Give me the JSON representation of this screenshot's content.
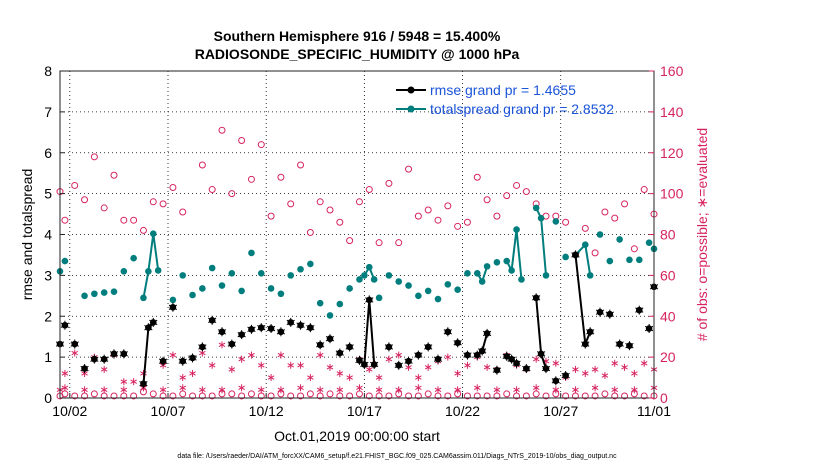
{
  "chart_data": {
    "type": "line",
    "title_line1": "Southern Hemisphere 916 / 5948 = 15.400%",
    "title_line2": "RADIOSONDE_SPECIFIC_HUMIDITY @ 1000 hPa",
    "xlabel": "Oct.01,2019 00:00:00 start",
    "ylabel_left": "rmse and totalspread",
    "ylabel_right": "# of obs: o=possible; ∗=evaluated",
    "footer": "data file: /Users/raeder/DAI/ATM_forcXX/CAM6_setup/f.e21.FHIST_BGC.f09_025.CAM6assim.011/Diags_NTrS_2019-10/obs_diag_output.nc",
    "xlim": [
      0.75,
      31.0
    ],
    "ylim_left": [
      0,
      8
    ],
    "ylim_right": [
      0,
      160
    ],
    "x_ticks": [
      {
        "value": 1.25,
        "label": "10/02"
      },
      {
        "value": 6.25,
        "label": "10/07"
      },
      {
        "value": 11.25,
        "label": "10/12"
      },
      {
        "value": 16.25,
        "label": "10/17"
      },
      {
        "value": 21.25,
        "label": "10/22"
      },
      {
        "value": 26.25,
        "label": "10/27"
      },
      {
        "value": 31.0,
        "label": "11/01"
      }
    ],
    "y_ticks_left": [
      {
        "value": 0,
        "label": "0"
      },
      {
        "value": 1,
        "label": "1"
      },
      {
        "value": 2,
        "label": "2"
      },
      {
        "value": 3,
        "label": "3"
      },
      {
        "value": 4,
        "label": "4"
      },
      {
        "value": 5,
        "label": "5"
      },
      {
        "value": 6,
        "label": "6"
      },
      {
        "value": 7,
        "label": "7"
      },
      {
        "value": 8,
        "label": "8"
      }
    ],
    "y_ticks_right": [
      {
        "value": 0,
        "label": "0"
      },
      {
        "value": 20,
        "label": "20"
      },
      {
        "value": 40,
        "label": "40"
      },
      {
        "value": 60,
        "label": "60"
      },
      {
        "value": 80,
        "label": "80"
      },
      {
        "value": 100,
        "label": "100"
      },
      {
        "value": 120,
        "label": "120"
      },
      {
        "value": 140,
        "label": "140"
      },
      {
        "value": 160,
        "label": "160"
      }
    ],
    "legend": [
      {
        "name": "rmse grand pr = 1.4655",
        "color": "#000000"
      },
      {
        "name": "totalspread grand pr = 2.8532",
        "color": "#007d7d"
      }
    ],
    "colors": {
      "rmse": "#000000",
      "spread": "#007d7d",
      "obs": "#d6245e",
      "legend_text": "#1a54d9",
      "axis": "#000000"
    },
    "rmse": [
      [
        0.75,
        1.32
      ],
      [
        1.0,
        1.78
      ],
      [
        1.5,
        1.32
      ],
      [
        2.0,
        0.72
      ],
      [
        2.5,
        0.95
      ],
      [
        3.0,
        0.95
      ],
      [
        3.5,
        1.08
      ],
      [
        4.0,
        1.08
      ],
      [
        5.0,
        0.35
      ],
      [
        5.25,
        1.72
      ],
      [
        5.5,
        1.85
      ],
      [
        6.0,
        0.9
      ],
      [
        6.5,
        2.22
      ],
      [
        7.0,
        0.9
      ],
      [
        7.5,
        0.98
      ],
      [
        8.0,
        1.25
      ],
      [
        8.5,
        1.9
      ],
      [
        9.0,
        1.62
      ],
      [
        9.5,
        1.32
      ],
      [
        10.0,
        1.55
      ],
      [
        10.5,
        1.68
      ],
      [
        11.0,
        1.72
      ],
      [
        11.5,
        1.7
      ],
      [
        12.0,
        1.62
      ],
      [
        12.5,
        1.85
      ],
      [
        13.0,
        1.78
      ],
      [
        13.5,
        1.72
      ],
      [
        14.0,
        1.3
      ],
      [
        14.5,
        1.45
      ],
      [
        15.0,
        1.1
      ],
      [
        15.5,
        1.25
      ],
      [
        16.0,
        0.92
      ],
      [
        16.25,
        0.82
      ],
      [
        16.5,
        2.4
      ],
      [
        16.75,
        0.82
      ],
      [
        17.5,
        1.25
      ],
      [
        18.0,
        0.8
      ],
      [
        18.5,
        0.9
      ],
      [
        19.0,
        1.05
      ],
      [
        19.5,
        1.25
      ],
      [
        20.0,
        0.95
      ],
      [
        20.5,
        1.62
      ],
      [
        21.0,
        1.35
      ],
      [
        21.5,
        1.05
      ],
      [
        22.0,
        1.05
      ],
      [
        22.25,
        1.15
      ],
      [
        22.5,
        1.58
      ],
      [
        23.0,
        0.68
      ],
      [
        23.5,
        1.02
      ],
      [
        23.75,
        0.95
      ],
      [
        24.0,
        0.85
      ],
      [
        24.5,
        0.72
      ],
      [
        25.0,
        2.45
      ],
      [
        25.25,
        1.08
      ],
      [
        25.5,
        0.72
      ],
      [
        26.0,
        0.42
      ],
      [
        26.5,
        0.55
      ],
      [
        27.0,
        3.5
      ],
      [
        27.5,
        1.32
      ],
      [
        27.75,
        1.62
      ],
      [
        28.25,
        2.1
      ],
      [
        28.75,
        2.05
      ],
      [
        29.25,
        1.32
      ],
      [
        29.75,
        1.28
      ],
      [
        30.25,
        2.15
      ],
      [
        30.75,
        1.7
      ],
      [
        31.0,
        2.72
      ]
    ],
    "rmse_segments": [
      [
        [
          5.0,
          0.35
        ],
        [
          5.25,
          1.72
        ],
        [
          5.5,
          1.85
        ]
      ],
      [
        [
          16.25,
          0.82
        ],
        [
          16.5,
          2.4
        ],
        [
          16.75,
          0.82
        ]
      ],
      [
        [
          22.25,
          1.15
        ],
        [
          22.5,
          1.58
        ]
      ],
      [
        [
          23.5,
          1.02
        ],
        [
          23.75,
          0.95
        ],
        [
          24.0,
          0.85
        ]
      ],
      [
        [
          25.0,
          2.45
        ],
        [
          25.25,
          1.08
        ],
        [
          25.5,
          0.72
        ]
      ],
      [
        [
          27.0,
          3.5
        ],
        [
          27.5,
          1.32
        ],
        [
          27.75,
          1.62
        ]
      ]
    ],
    "spread": [
      [
        0.75,
        3.1
      ],
      [
        1.0,
        3.35
      ],
      [
        2.0,
        2.5
      ],
      [
        2.5,
        2.55
      ],
      [
        3.0,
        2.58
      ],
      [
        3.5,
        2.6
      ],
      [
        4.0,
        3.1
      ],
      [
        4.5,
        3.42
      ],
      [
        5.0,
        2.45
      ],
      [
        5.25,
        3.1
      ],
      [
        5.5,
        4.02
      ],
      [
        5.75,
        3.12
      ],
      [
        6.5,
        2.4
      ],
      [
        7.0,
        3.0
      ],
      [
        7.5,
        2.52
      ],
      [
        8.0,
        2.68
      ],
      [
        8.5,
        3.18
      ],
      [
        9.0,
        2.75
      ],
      [
        9.5,
        3.05
      ],
      [
        10.0,
        2.62
      ],
      [
        10.5,
        3.55
      ],
      [
        11.0,
        3.05
      ],
      [
        11.5,
        2.68
      ],
      [
        12.0,
        2.55
      ],
      [
        12.5,
        3.0
      ],
      [
        13.0,
        3.15
      ],
      [
        13.5,
        3.28
      ],
      [
        14.0,
        2.32
      ],
      [
        14.5,
        2.02
      ],
      [
        15.0,
        2.3
      ],
      [
        15.5,
        2.68
      ],
      [
        16.0,
        2.9
      ],
      [
        16.25,
        3.0
      ],
      [
        16.5,
        3.2
      ],
      [
        16.75,
        2.9
      ],
      [
        17.0,
        2.45
      ],
      [
        17.5,
        3.0
      ],
      [
        18.0,
        2.85
      ],
      [
        18.5,
        2.75
      ],
      [
        19.0,
        2.5
      ],
      [
        19.5,
        2.62
      ],
      [
        20.0,
        2.42
      ],
      [
        20.5,
        2.78
      ],
      [
        21.0,
        2.65
      ],
      [
        21.5,
        3.05
      ],
      [
        22.0,
        3.05
      ],
      [
        22.25,
        2.85
      ],
      [
        22.5,
        3.22
      ],
      [
        23.0,
        3.32
      ],
      [
        23.5,
        3.35
      ],
      [
        23.75,
        3.12
      ],
      [
        24.0,
        4.12
      ],
      [
        24.25,
        2.9
      ],
      [
        25.0,
        4.65
      ],
      [
        25.25,
        4.4
      ],
      [
        25.5,
        3.0
      ],
      [
        26.0,
        4.32
      ],
      [
        26.5,
        3.45
      ],
      [
        27.0,
        3.5
      ],
      [
        27.5,
        3.75
      ],
      [
        27.75,
        3.0
      ],
      [
        28.25,
        4.0
      ],
      [
        28.75,
        3.35
      ],
      [
        29.25,
        3.88
      ],
      [
        29.75,
        3.38
      ],
      [
        30.25,
        3.38
      ],
      [
        30.75,
        3.8
      ],
      [
        31.0,
        3.65
      ]
    ],
    "spread_segments": [
      [
        [
          5.0,
          2.45
        ],
        [
          5.25,
          3.1
        ],
        [
          5.5,
          4.02
        ],
        [
          5.75,
          3.12
        ]
      ],
      [
        [
          16.25,
          3.0
        ],
        [
          16.5,
          3.2
        ],
        [
          16.75,
          2.9
        ]
      ],
      [
        [
          22.0,
          3.05
        ],
        [
          22.25,
          2.85
        ],
        [
          22.5,
          3.22
        ]
      ],
      [
        [
          23.5,
          3.35
        ],
        [
          23.75,
          3.12
        ],
        [
          24.0,
          4.12
        ],
        [
          24.25,
          2.9
        ]
      ],
      [
        [
          25.0,
          4.65
        ],
        [
          25.25,
          4.4
        ],
        [
          25.5,
          3.0
        ]
      ],
      [
        [
          27.0,
          3.5
        ],
        [
          27.5,
          3.75
        ],
        [
          27.75,
          3.0
        ]
      ]
    ],
    "obs_possible": [
      [
        0.75,
        101
      ],
      [
        1.0,
        87
      ],
      [
        1.5,
        104
      ],
      [
        2.0,
        97
      ],
      [
        2.5,
        118
      ],
      [
        3.0,
        93
      ],
      [
        3.5,
        109
      ],
      [
        4.0,
        87
      ],
      [
        4.5,
        87
      ],
      [
        5.0,
        82
      ],
      [
        5.5,
        96
      ],
      [
        6.0,
        95
      ],
      [
        6.5,
        103
      ],
      [
        7.0,
        91
      ],
      [
        8.0,
        114
      ],
      [
        8.5,
        102
      ],
      [
        9.0,
        131
      ],
      [
        9.5,
        100
      ],
      [
        10.0,
        126
      ],
      [
        10.5,
        107
      ],
      [
        11.0,
        124
      ],
      [
        11.5,
        89
      ],
      [
        12.0,
        108
      ],
      [
        12.5,
        95
      ],
      [
        13.0,
        114
      ],
      [
        13.5,
        81
      ],
      [
        14.0,
        96
      ],
      [
        14.5,
        92
      ],
      [
        15.0,
        86
      ],
      [
        15.5,
        77
      ],
      [
        16.0,
        96
      ],
      [
        16.5,
        102
      ],
      [
        17.0,
        76
      ],
      [
        17.5,
        105
      ],
      [
        18.0,
        76
      ],
      [
        18.5,
        112
      ],
      [
        19.0,
        89
      ],
      [
        19.5,
        92
      ],
      [
        20.0,
        87
      ],
      [
        20.5,
        94
      ],
      [
        21.0,
        84
      ],
      [
        21.5,
        86
      ],
      [
        22.0,
        108
      ],
      [
        22.5,
        97
      ],
      [
        23.0,
        89
      ],
      [
        23.5,
        99
      ],
      [
        24.0,
        104
      ],
      [
        24.5,
        101
      ],
      [
        25.0,
        95
      ],
      [
        25.5,
        89
      ],
      [
        26.0,
        89
      ],
      [
        26.5,
        86
      ],
      [
        27.0,
        70
      ],
      [
        27.5,
        83
      ],
      [
        28.0,
        71
      ],
      [
        28.5,
        91
      ],
      [
        29.0,
        88
      ],
      [
        29.5,
        95
      ],
      [
        30.0,
        73
      ],
      [
        30.5,
        102
      ],
      [
        31.0,
        90
      ]
    ],
    "obs_evaluated": [
      [
        1.0,
        12
      ],
      [
        1.5,
        22
      ],
      [
        2.0,
        12
      ],
      [
        2.5,
        20
      ],
      [
        3.0,
        14
      ],
      [
        3.5,
        21
      ],
      [
        4.0,
        8
      ],
      [
        4.5,
        8
      ],
      [
        5.0,
        12
      ],
      [
        6.0,
        16
      ],
      [
        6.5,
        21
      ],
      [
        7.0,
        10
      ],
      [
        7.5,
        12
      ],
      [
        8.0,
        22
      ],
      [
        8.5,
        16
      ],
      [
        9.0,
        26
      ],
      [
        9.5,
        14
      ],
      [
        10.0,
        19
      ],
      [
        10.5,
        21
      ],
      [
        11.0,
        16
      ],
      [
        11.5,
        10
      ],
      [
        12.0,
        21
      ],
      [
        12.5,
        16
      ],
      [
        13.0,
        16
      ],
      [
        13.5,
        10
      ],
      [
        14.0,
        21
      ],
      [
        14.5,
        15
      ],
      [
        15.0,
        12
      ],
      [
        15.5,
        10
      ],
      [
        16.0,
        19
      ],
      [
        16.5,
        14
      ],
      [
        17.0,
        10
      ],
      [
        17.5,
        19
      ],
      [
        18.0,
        21
      ],
      [
        18.5,
        15
      ],
      [
        19.0,
        10
      ],
      [
        19.5,
        15
      ],
      [
        20.0,
        18
      ],
      [
        20.5,
        20
      ],
      [
        21.0,
        12
      ],
      [
        21.5,
        16
      ],
      [
        22.0,
        20
      ],
      [
        22.5,
        15
      ],
      [
        23.0,
        14
      ],
      [
        23.5,
        21
      ],
      [
        24.0,
        16
      ],
      [
        24.5,
        14
      ],
      [
        25.0,
        19
      ],
      [
        25.5,
        18
      ],
      [
        26.0,
        17
      ],
      [
        26.5,
        10
      ],
      [
        27.0,
        14
      ],
      [
        27.5,
        12
      ],
      [
        28.0,
        14
      ],
      [
        28.5,
        11
      ],
      [
        29.0,
        17
      ],
      [
        29.5,
        15
      ],
      [
        30.0,
        12
      ],
      [
        30.5,
        17
      ],
      [
        31.0,
        14
      ]
    ],
    "obs_possible_low": [
      [
        0.75,
        1
      ],
      [
        1.0,
        2
      ],
      [
        1.5,
        1
      ],
      [
        2.0,
        1
      ],
      [
        2.5,
        2
      ],
      [
        3.0,
        1
      ],
      [
        3.5,
        1
      ],
      [
        4.0,
        1
      ],
      [
        4.5,
        1
      ],
      [
        5.0,
        3
      ],
      [
        5.5,
        2
      ],
      [
        6.0,
        1
      ],
      [
        6.5,
        1
      ],
      [
        7.0,
        2
      ],
      [
        7.5,
        1
      ],
      [
        8.0,
        1
      ],
      [
        8.5,
        1
      ],
      [
        9.0,
        2
      ],
      [
        9.5,
        2
      ],
      [
        10.0,
        1
      ],
      [
        10.5,
        2
      ],
      [
        11.0,
        1
      ],
      [
        11.5,
        1
      ],
      [
        12.0,
        2
      ],
      [
        12.5,
        1
      ],
      [
        13.0,
        1
      ],
      [
        13.5,
        2
      ],
      [
        14.0,
        1
      ],
      [
        14.5,
        2
      ],
      [
        15.0,
        1
      ],
      [
        15.5,
        1
      ],
      [
        16.0,
        2
      ],
      [
        16.5,
        1
      ],
      [
        17.0,
        1
      ],
      [
        17.5,
        1
      ],
      [
        18.0,
        2
      ],
      [
        18.5,
        1
      ],
      [
        19.0,
        1
      ],
      [
        19.5,
        2
      ],
      [
        20.0,
        1
      ],
      [
        20.5,
        1
      ],
      [
        21.0,
        2
      ],
      [
        21.5,
        1
      ],
      [
        22.0,
        1
      ],
      [
        22.5,
        1
      ],
      [
        23.0,
        1
      ],
      [
        23.5,
        2
      ],
      [
        24.0,
        1
      ],
      [
        24.5,
        1
      ],
      [
        25.0,
        2
      ],
      [
        25.5,
        1
      ],
      [
        26.0,
        2
      ],
      [
        26.5,
        1
      ],
      [
        27.0,
        1
      ],
      [
        27.5,
        1
      ],
      [
        28.0,
        1
      ],
      [
        28.5,
        2
      ],
      [
        29.0,
        1
      ],
      [
        29.5,
        1
      ],
      [
        30.0,
        2
      ],
      [
        30.5,
        1
      ],
      [
        31.0,
        1
      ]
    ],
    "obs_evaluated_low": [
      [
        0.75,
        4
      ],
      [
        1.0,
        5
      ],
      [
        2.0,
        4
      ],
      [
        3.0,
        4
      ],
      [
        4.0,
        4
      ],
      [
        5.0,
        5
      ],
      [
        6.0,
        4
      ],
      [
        7.0,
        5
      ],
      [
        8.0,
        4
      ],
      [
        9.0,
        4
      ],
      [
        10.0,
        5
      ],
      [
        11.0,
        4
      ],
      [
        12.0,
        4
      ],
      [
        13.0,
        5
      ],
      [
        14.0,
        4
      ],
      [
        15.0,
        4
      ],
      [
        16.0,
        5
      ],
      [
        17.0,
        4
      ],
      [
        18.0,
        4
      ],
      [
        19.0,
        5
      ],
      [
        20.0,
        4
      ],
      [
        21.0,
        4
      ],
      [
        22.0,
        5
      ],
      [
        23.0,
        4
      ],
      [
        24.0,
        4
      ],
      [
        25.0,
        5
      ],
      [
        26.0,
        4
      ],
      [
        27.0,
        4
      ],
      [
        28.0,
        5
      ],
      [
        29.0,
        4
      ],
      [
        30.0,
        4
      ],
      [
        31.0,
        5
      ]
    ]
  }
}
